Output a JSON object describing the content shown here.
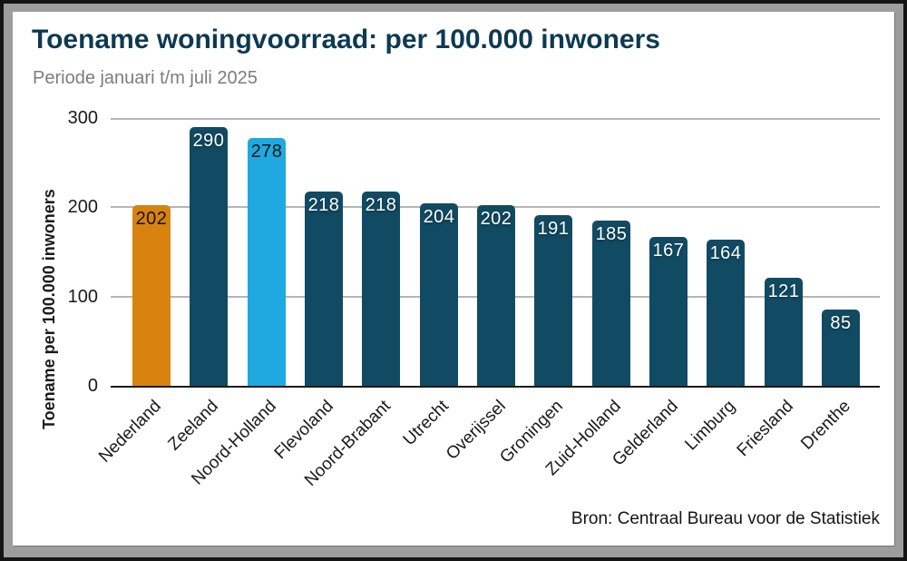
{
  "header": {
    "title": "Toename woningvoorraad: per 100.000 inwoners",
    "subtitle": "Periode januari t/m juli 2025"
  },
  "source": "Bron: Centraal Bureau voor de Statistiek",
  "colors": {
    "title_text": "#0d3a52",
    "subtitle_text": "#7d7d7d",
    "default_bar": "#114b63",
    "national_highlight_bar": "#d8830f",
    "province_highlight_bar": "#1fa9e0",
    "gridline": "#b5b5b5",
    "axis_line": "#1a1a1a",
    "frame_gray": "#9d9d9d",
    "frame_black": "#141414",
    "panel_background": "#ffffff"
  },
  "chart_data": {
    "type": "bar",
    "title": "Toename woningvoorraad: per 100.000 inwoners",
    "subtitle": "Periode januari t/m juli 2025",
    "xlabel": "",
    "ylabel": "Toename per 100.000 inwoners",
    "ylim": [
      0,
      300
    ],
    "yticks": [
      0,
      100,
      200,
      300
    ],
    "grid": true,
    "legend": false,
    "categories": [
      "Nederland",
      "Zeeland",
      "Noord-Holland",
      "Flevoland",
      "Noord-Brabant",
      "Utrecht",
      "Overijssel",
      "Groningen",
      "Zuid-Holland",
      "Gelderland",
      "Limburg",
      "Friesland",
      "Drenthe"
    ],
    "values": [
      202,
      290,
      278,
      218,
      218,
      204,
      202,
      191,
      185,
      167,
      164,
      121,
      85
    ],
    "bars": [
      {
        "category": "Nederland",
        "value": 202,
        "color": "#d8830f",
        "value_label_color": "dark"
      },
      {
        "category": "Zeeland",
        "value": 290,
        "color": "#114b63",
        "value_label_color": "light"
      },
      {
        "category": "Noord-Holland",
        "value": 278,
        "color": "#1fa9e0",
        "value_label_color": "dark"
      },
      {
        "category": "Flevoland",
        "value": 218,
        "color": "#114b63",
        "value_label_color": "light"
      },
      {
        "category": "Noord-Brabant",
        "value": 218,
        "color": "#114b63",
        "value_label_color": "light"
      },
      {
        "category": "Utrecht",
        "value": 204,
        "color": "#114b63",
        "value_label_color": "light"
      },
      {
        "category": "Overijssel",
        "value": 202,
        "color": "#114b63",
        "value_label_color": "light"
      },
      {
        "category": "Groningen",
        "value": 191,
        "color": "#114b63",
        "value_label_color": "light"
      },
      {
        "category": "Zuid-Holland",
        "value": 185,
        "color": "#114b63",
        "value_label_color": "light"
      },
      {
        "category": "Gelderland",
        "value": 167,
        "color": "#114b63",
        "value_label_color": "light"
      },
      {
        "category": "Limburg",
        "value": 164,
        "color": "#114b63",
        "value_label_color": "light"
      },
      {
        "category": "Friesland",
        "value": 121,
        "color": "#114b63",
        "value_label_color": "light"
      },
      {
        "category": "Drenthe",
        "value": 85,
        "color": "#114b63",
        "value_label_color": "light"
      }
    ]
  }
}
